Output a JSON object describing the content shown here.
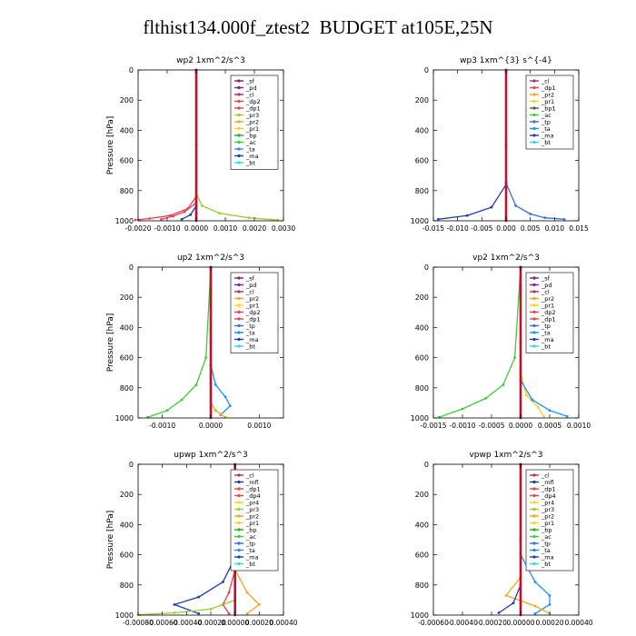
{
  "title": "flthist134.000f_ztest2  BUDGET at105E,25N",
  "colors": {
    "_sf": "#8B2252",
    "_pd": "#7A1FA2",
    "_cl": "#B03060",
    "_dp2": "#E8434F",
    "_dp1": "#E8434F",
    "_dp4": "#E8434F",
    "_pr1": "#FFD21F",
    "_pr2": "#F5A623",
    "_pr3": "#9ACD32",
    "_pr4": "#FFD21F",
    "_bp": "#1FB41F",
    "_ac": "#3CCC3C",
    "_tp": "#3B6FE0",
    "_ta": "#1E90FF",
    "_ma": "#1E3CB4",
    "_bt": "#35D7E8",
    "_mfl": "#1A3F8F"
  },
  "chart_data": [
    {
      "type": "line",
      "panel": "wp2",
      "title": "wp2   1xm^2/s^3",
      "ylabel": "Pressure [hPa]",
      "xlim": [
        -0.002,
        0.003
      ],
      "ylim": [
        1000,
        0
      ],
      "xticks": [
        -0.002,
        -0.001,
        0.0,
        0.001,
        0.002,
        0.003
      ],
      "xticklabels": [
        "-0.0020",
        "-0.0010",
        "0.0000",
        "0.0010",
        "0.0020",
        "0.0030"
      ],
      "yticks": [
        0,
        200,
        400,
        600,
        800,
        1000
      ],
      "legend": [
        "_sf",
        "_pd",
        "_cl",
        "_dp2",
        "_dp1",
        "_pr3",
        "_pr2",
        "_pr1",
        "_bp",
        "_ac",
        "_ta",
        "_ma",
        "_bt"
      ],
      "legend_position": "top-right",
      "series": [
        {
          "name": "_pr3",
          "x": [
            0,
            0,
            0.0002,
            0.0008,
            0.0018,
            0.0028
          ],
          "y": [
            0,
            820,
            900,
            950,
            980,
            995
          ]
        },
        {
          "name": "_dp1",
          "x": [
            0,
            0,
            -0.0003,
            -0.0009,
            -0.0016,
            -0.0021
          ],
          "y": [
            0,
            840,
            920,
            965,
            985,
            995
          ]
        },
        {
          "name": "_dp2",
          "x": [
            0,
            0,
            -0.0004,
            -0.0008,
            -0.0012
          ],
          "y": [
            0,
            880,
            940,
            970,
            990
          ]
        },
        {
          "name": "_ma",
          "x": [
            0,
            0,
            -0.0002,
            -0.0005
          ],
          "y": [
            0,
            900,
            960,
            990
          ]
        },
        {
          "name": "_pd",
          "x": [
            0,
            0,
            0
          ],
          "y": [
            0,
            500,
            1000
          ]
        }
      ]
    },
    {
      "type": "line",
      "panel": "wp3",
      "title": "wp3   1xm^{3} s^{-4}",
      "ylabel": "",
      "xlim": [
        -0.015,
        0.015
      ],
      "ylim": [
        1000,
        0
      ],
      "xticks": [
        -0.015,
        -0.01,
        -0.005,
        0.0,
        0.005,
        0.01,
        0.015
      ],
      "xticklabels": [
        "-0.015",
        "-0.010",
        "-0.005",
        "0.000",
        "0.005",
        "0.010",
        "0.015"
      ],
      "yticks": [
        0,
        200,
        400,
        600,
        800,
        1000
      ],
      "legend": [
        "_cl",
        "_dp1",
        "_pr2",
        "_pr1",
        "_bp1",
        "_ac",
        "_tp",
        "_ta",
        "_ma",
        "_bt"
      ],
      "legend_position": "top-right",
      "series": [
        {
          "name": "_tp",
          "x": [
            0,
            0,
            0.002,
            0.005,
            0.008,
            0.012
          ],
          "y": [
            0,
            750,
            900,
            955,
            980,
            990
          ]
        },
        {
          "name": "_ma",
          "x": [
            0,
            0,
            -0.003,
            -0.008,
            -0.014
          ],
          "y": [
            0,
            760,
            910,
            965,
            990
          ]
        },
        {
          "name": "_cl",
          "x": [
            0,
            0,
            0
          ],
          "y": [
            0,
            500,
            1000
          ]
        },
        {
          "name": "_dp1",
          "x": [
            0,
            0,
            0
          ],
          "y": [
            0,
            500,
            1000
          ]
        }
      ]
    },
    {
      "type": "line",
      "panel": "up2",
      "title": "up2   1xm^2/s^3",
      "ylabel": "Pressure [hPa]",
      "xlim": [
        -0.0015,
        0.0015
      ],
      "ylim": [
        1000,
        0
      ],
      "xticks": [
        -0.001,
        0.0,
        0.001
      ],
      "xticklabels": [
        "-0.0010",
        "0.0000",
        "0.0010"
      ],
      "yticks": [
        0,
        200,
        400,
        600,
        800,
        1000
      ],
      "legend": [
        "_sf",
        "_pd",
        "_cl",
        "_pr2",
        "_pr1",
        "_dp2",
        "_dp1",
        "_tp",
        "_ta",
        "_ma",
        "_bt"
      ],
      "legend_position": "top-right",
      "series": [
        {
          "name": "_ac",
          "x": [
            0,
            -0.0001,
            -0.0003,
            -0.0006,
            -0.0009,
            -0.0013
          ],
          "y": [
            0,
            600,
            780,
            880,
            950,
            995
          ]
        },
        {
          "name": "_ta",
          "x": [
            0,
            0,
            0.0001,
            0.0003,
            0.0004,
            0.0002
          ],
          "y": [
            0,
            650,
            780,
            860,
            920,
            980
          ]
        },
        {
          "name": "_pr2",
          "x": [
            0,
            0,
            0.0001,
            0.0002,
            0.0003
          ],
          "y": [
            0,
            900,
            950,
            975,
            995
          ]
        },
        {
          "name": "_sf",
          "x": [
            0,
            0,
            0
          ],
          "y": [
            0,
            500,
            1000
          ]
        }
      ]
    },
    {
      "type": "line",
      "panel": "vp2",
      "title": "vp2   1xm^2/s^3",
      "ylabel": "",
      "xlim": [
        -0.0015,
        0.001
      ],
      "ylim": [
        1000,
        0
      ],
      "xticks": [
        -0.0015,
        -0.001,
        -0.0005,
        0.0,
        0.0005,
        0.001
      ],
      "xticklabels": [
        "-0.0015",
        "-0.0010",
        "-0.0005",
        "0.0000",
        "0.0005",
        "0.0010"
      ],
      "yticks": [
        0,
        200,
        400,
        600,
        800,
        1000
      ],
      "legend": [
        "_sf",
        "_pd",
        "_cl",
        "_pr2",
        "_pr1",
        "_dp2",
        "_dp1",
        "_tp",
        "_ta",
        "_ma",
        "_bt"
      ],
      "legend_position": "top-right",
      "series": [
        {
          "name": "_ac",
          "x": [
            0,
            -0.0001,
            -0.0003,
            -0.0006,
            -0.001,
            -0.0014
          ],
          "y": [
            0,
            600,
            780,
            870,
            940,
            995
          ]
        },
        {
          "name": "_pr1",
          "x": [
            0,
            0,
            0.0001,
            0.0003,
            0.0004
          ],
          "y": [
            0,
            700,
            850,
            930,
            990
          ]
        },
        {
          "name": "_ta",
          "x": [
            0,
            0,
            0.0002,
            0.0005,
            0.0008
          ],
          "y": [
            0,
            750,
            880,
            950,
            990
          ]
        },
        {
          "name": "_sf",
          "x": [
            0,
            0,
            0
          ],
          "y": [
            0,
            500,
            1000
          ]
        }
      ]
    },
    {
      "type": "line",
      "panel": "upwp",
      "title": "upwp   1xm^2/s^3",
      "ylabel": "Pressure [hPa]",
      "xlim": [
        -0.0008,
        0.0004
      ],
      "ylim": [
        1000,
        0
      ],
      "xticks": [
        -0.0008,
        -0.0006,
        -0.0004,
        -0.0002,
        0.0,
        0.0002,
        0.0004
      ],
      "xticklabels": [
        "-0.00080",
        "-0.00060",
        "-0.00040",
        "-0.00020",
        "0.00000",
        "0.00020",
        "0.00040"
      ],
      "yticks": [
        0,
        200,
        400,
        600,
        800,
        1000
      ],
      "legend": [
        "_cl",
        "_mfl",
        "_dp1",
        "_dp4",
        "_pr4",
        "_pr3",
        "_pr2",
        "_pr1",
        "_bp",
        "_ac",
        "_tp",
        "_ta",
        "_ma",
        "_bt"
      ],
      "legend_position": "top-right",
      "series": [
        {
          "name": "_ma",
          "x": [
            0,
            0,
            -0.0001,
            -0.0003,
            -0.0005,
            -0.0003
          ],
          "y": [
            0,
            620,
            780,
            880,
            930,
            990
          ]
        },
        {
          "name": "_pr2",
          "x": [
            0,
            0,
            0.0001,
            0.0002,
            0.0001
          ],
          "y": [
            0,
            700,
            850,
            930,
            990
          ]
        },
        {
          "name": "_dp1",
          "x": [
            0,
            0,
            -5e-05,
            -0.0001,
            -5e-05
          ],
          "y": [
            0,
            700,
            850,
            930,
            990
          ]
        },
        {
          "name": "_pr3",
          "x": [
            0,
            0,
            -0.0002,
            -0.0005,
            -0.0008
          ],
          "y": [
            0,
            900,
            960,
            985,
            998
          ]
        },
        {
          "name": "_cl",
          "x": [
            0,
            0,
            0
          ],
          "y": [
            0,
            500,
            1000
          ]
        }
      ]
    },
    {
      "type": "line",
      "panel": "vpwp",
      "title": "vpwp   1xm^2/s^3",
      "ylabel": "",
      "xlim": [
        -0.0006,
        0.0004
      ],
      "ylim": [
        1000,
        0
      ],
      "xticks": [
        -0.0006,
        -0.0004,
        -0.0002,
        0.0,
        0.0002,
        0.0004
      ],
      "xticklabels": [
        "-0.00060",
        "-0.00040",
        "-0.00020",
        "0.00000",
        "0.00020",
        "0.00040"
      ],
      "yticks": [
        0,
        200,
        400,
        600,
        800,
        1000
      ],
      "legend": [
        "_cl",
        "_mfl",
        "_dp1",
        "_dp4",
        "_pr4",
        "_pr3",
        "_pr2",
        "_pr1",
        "_bp",
        "_ac",
        "_tp",
        "_ta",
        "_ma",
        "_bt"
      ],
      "legend_position": "top-right",
      "series": [
        {
          "name": "_ta",
          "x": [
            0,
            0,
            0.0001,
            0.0002,
            0.0002,
            0.0001
          ],
          "y": [
            0,
            600,
            780,
            870,
            930,
            990
          ]
        },
        {
          "name": "_pr2",
          "x": [
            0,
            0,
            -0.0001,
            0.0001,
            0.0002
          ],
          "y": [
            0,
            750,
            870,
            940,
            990
          ]
        },
        {
          "name": "_ma",
          "x": [
            0,
            0,
            -5e-05,
            -0.00015
          ],
          "y": [
            0,
            800,
            920,
            985
          ]
        },
        {
          "name": "_cl",
          "x": [
            0,
            0,
            0
          ],
          "y": [
            0,
            500,
            1000
          ]
        }
      ]
    }
  ]
}
